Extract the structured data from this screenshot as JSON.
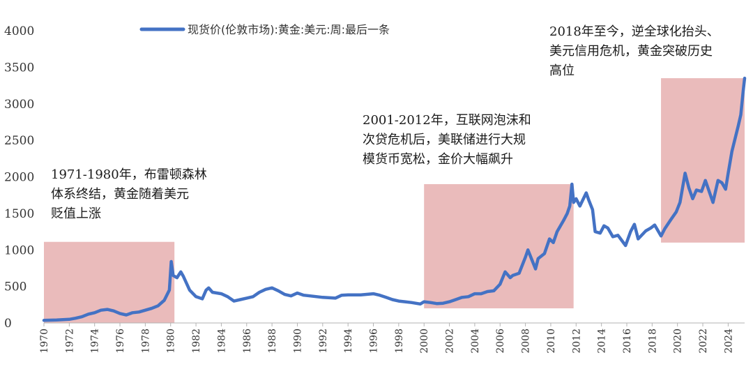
{
  "chart_data": {
    "type": "line",
    "title": "",
    "xlabel": "",
    "ylabel": "",
    "legend": {
      "label": "现货价(伦敦市场):黄金:美元:周:最后一条",
      "position": "top-center"
    },
    "x_ticks": [
      "1970",
      "1972",
      "1974",
      "1976",
      "1978",
      "1980",
      "1982",
      "1984",
      "1986",
      "1988",
      "1990",
      "1992",
      "1994",
      "1996",
      "1998",
      "2000",
      "2002",
      "2004",
      "2006",
      "2008",
      "2010",
      "2012",
      "2014",
      "2016",
      "2018",
      "2020",
      "2022",
      "2024"
    ],
    "y_ticks": [
      "0",
      "500",
      "1000",
      "1500",
      "2000",
      "2500",
      "3000",
      "3500",
      "4000"
    ],
    "xlim": [
      1970,
      2025.3
    ],
    "ylim": [
      0,
      4000
    ],
    "grid": false,
    "series": [
      {
        "name": "现货价(伦敦市场):黄金:美元:周:最后一条",
        "color": "#4472c4",
        "points": [
          [
            1970.0,
            35
          ],
          [
            1971.0,
            40
          ],
          [
            1972.0,
            50
          ],
          [
            1972.5,
            65
          ],
          [
            1973.0,
            85
          ],
          [
            1973.5,
            120
          ],
          [
            1974.0,
            140
          ],
          [
            1974.5,
            175
          ],
          [
            1975.0,
            185
          ],
          [
            1975.5,
            165
          ],
          [
            1976.0,
            130
          ],
          [
            1976.5,
            110
          ],
          [
            1977.0,
            140
          ],
          [
            1977.5,
            150
          ],
          [
            1978.0,
            175
          ],
          [
            1978.5,
            200
          ],
          [
            1979.0,
            235
          ],
          [
            1979.5,
            310
          ],
          [
            1979.9,
            450
          ],
          [
            1980.05,
            840
          ],
          [
            1980.2,
            650
          ],
          [
            1980.5,
            620
          ],
          [
            1980.8,
            700
          ],
          [
            1981.0,
            640
          ],
          [
            1981.5,
            450
          ],
          [
            1982.0,
            360
          ],
          [
            1982.5,
            330
          ],
          [
            1982.8,
            450
          ],
          [
            1983.0,
            480
          ],
          [
            1983.3,
            420
          ],
          [
            1984.0,
            400
          ],
          [
            1984.5,
            360
          ],
          [
            1985.0,
            300
          ],
          [
            1985.5,
            320
          ],
          [
            1986.0,
            340
          ],
          [
            1986.5,
            360
          ],
          [
            1987.0,
            420
          ],
          [
            1987.5,
            460
          ],
          [
            1988.0,
            480
          ],
          [
            1988.5,
            440
          ],
          [
            1989.0,
            390
          ],
          [
            1989.5,
            370
          ],
          [
            1990.0,
            410
          ],
          [
            1990.5,
            380
          ],
          [
            1991.0,
            370
          ],
          [
            1992.0,
            350
          ],
          [
            1993.0,
            340
          ],
          [
            1993.5,
            380
          ],
          [
            1994.0,
            385
          ],
          [
            1995.0,
            385
          ],
          [
            1996.0,
            400
          ],
          [
            1996.5,
            380
          ],
          [
            1997.0,
            350
          ],
          [
            1997.5,
            320
          ],
          [
            1998.0,
            300
          ],
          [
            1998.5,
            290
          ],
          [
            1999.0,
            280
          ],
          [
            1999.7,
            260
          ],
          [
            2000.0,
            290
          ],
          [
            2000.5,
            280
          ],
          [
            2001.0,
            265
          ],
          [
            2001.5,
            270
          ],
          [
            2002.0,
            290
          ],
          [
            2002.5,
            320
          ],
          [
            2003.0,
            350
          ],
          [
            2003.5,
            360
          ],
          [
            2004.0,
            400
          ],
          [
            2004.5,
            400
          ],
          [
            2005.0,
            430
          ],
          [
            2005.5,
            440
          ],
          [
            2006.0,
            530
          ],
          [
            2006.4,
            700
          ],
          [
            2006.8,
            620
          ],
          [
            2007.0,
            650
          ],
          [
            2007.5,
            680
          ],
          [
            2008.0,
            900
          ],
          [
            2008.2,
            1000
          ],
          [
            2008.8,
            740
          ],
          [
            2009.0,
            880
          ],
          [
            2009.5,
            950
          ],
          [
            2009.9,
            1150
          ],
          [
            2010.2,
            1100
          ],
          [
            2010.5,
            1250
          ],
          [
            2011.0,
            1400
          ],
          [
            2011.3,
            1500
          ],
          [
            2011.5,
            1600
          ],
          [
            2011.67,
            1900
          ],
          [
            2011.8,
            1650
          ],
          [
            2012.0,
            1700
          ],
          [
            2012.3,
            1600
          ],
          [
            2012.8,
            1780
          ],
          [
            2013.0,
            1680
          ],
          [
            2013.3,
            1550
          ],
          [
            2013.5,
            1250
          ],
          [
            2013.9,
            1230
          ],
          [
            2014.2,
            1330
          ],
          [
            2014.5,
            1300
          ],
          [
            2014.9,
            1180
          ],
          [
            2015.3,
            1200
          ],
          [
            2015.9,
            1060
          ],
          [
            2016.3,
            1250
          ],
          [
            2016.6,
            1350
          ],
          [
            2016.9,
            1150
          ],
          [
            2017.5,
            1260
          ],
          [
            2017.9,
            1300
          ],
          [
            2018.2,
            1340
          ],
          [
            2018.7,
            1190
          ],
          [
            2019.0,
            1290
          ],
          [
            2019.5,
            1420
          ],
          [
            2019.9,
            1520
          ],
          [
            2020.2,
            1650
          ],
          [
            2020.6,
            2050
          ],
          [
            2020.9,
            1850
          ],
          [
            2021.2,
            1700
          ],
          [
            2021.5,
            1820
          ],
          [
            2021.9,
            1800
          ],
          [
            2022.2,
            1950
          ],
          [
            2022.8,
            1650
          ],
          [
            2023.2,
            1950
          ],
          [
            2023.5,
            1920
          ],
          [
            2023.8,
            1830
          ],
          [
            2024.0,
            2050
          ],
          [
            2024.3,
            2350
          ],
          [
            2024.8,
            2700
          ],
          [
            2025.0,
            2850
          ],
          [
            2025.2,
            3200
          ],
          [
            2025.3,
            3350
          ]
        ]
      }
    ],
    "shaded_periods": [
      {
        "x": [
          1970.0,
          1980.3
        ],
        "y": [
          0,
          1110
        ]
      },
      {
        "x": [
          2000.0,
          2011.8
        ],
        "y": [
          200,
          1900
        ]
      },
      {
        "x": [
          2018.7,
          2025.3
        ],
        "y": [
          1100,
          3350
        ]
      }
    ],
    "annotations": [
      {
        "id": "annotation-1971-1980",
        "lines": [
          "1971-1980年，布雷顿森林",
          "体系终结，黄金随着美元",
          "贬值上涨"
        ]
      },
      {
        "id": "annotation-2001-2012",
        "lines": [
          "2001-2012年，互联网泡沫和",
          "次贷危机后，美联储进行大规",
          "模货币宽松，金价大幅飙升"
        ]
      },
      {
        "id": "annotation-2018-now",
        "lines": [
          "2018年至今，逆全球化抬头、",
          "美元信用危机，黄金突破历史",
          "高位"
        ]
      }
    ],
    "colors": {
      "line": "#4472c4",
      "shade": "#e9b7b7",
      "axis": "#b3b3b3",
      "text": "#333333"
    }
  }
}
